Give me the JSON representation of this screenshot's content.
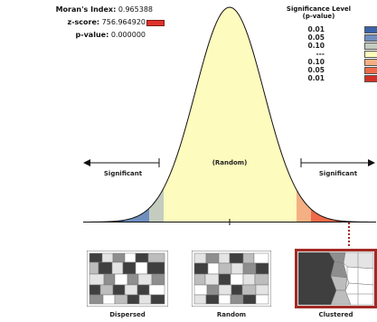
{
  "stats": {
    "moran_label": "Moran's Index:",
    "moran_value": "0.965388",
    "z_label": "z-score:",
    "z_value": "756.964920",
    "p_label": "p-value:",
    "p_value": "0.000000"
  },
  "legend": {
    "title_line1": "Significance Level",
    "title_line2": "(p-value)",
    "rows": [
      {
        "value": "0.01",
        "color": "#3a63a8"
      },
      {
        "value": "0.05",
        "color": "#6f8fbf"
      },
      {
        "value": "0.10",
        "color": "#c3ccbf"
      },
      {
        "value": "---",
        "color": "#fdfbbd"
      },
      {
        "value": "0.10",
        "color": "#f4b083"
      },
      {
        "value": "0.05",
        "color": "#ee6a48"
      },
      {
        "value": "0.01",
        "color": "#d43025"
      }
    ]
  },
  "curve": {
    "left_label": "Significant",
    "center_label": "(Random)",
    "right_label": "Significant"
  },
  "maps": {
    "dispersed": "Dispersed",
    "random": "Random",
    "clustered": "Clustered"
  }
}
